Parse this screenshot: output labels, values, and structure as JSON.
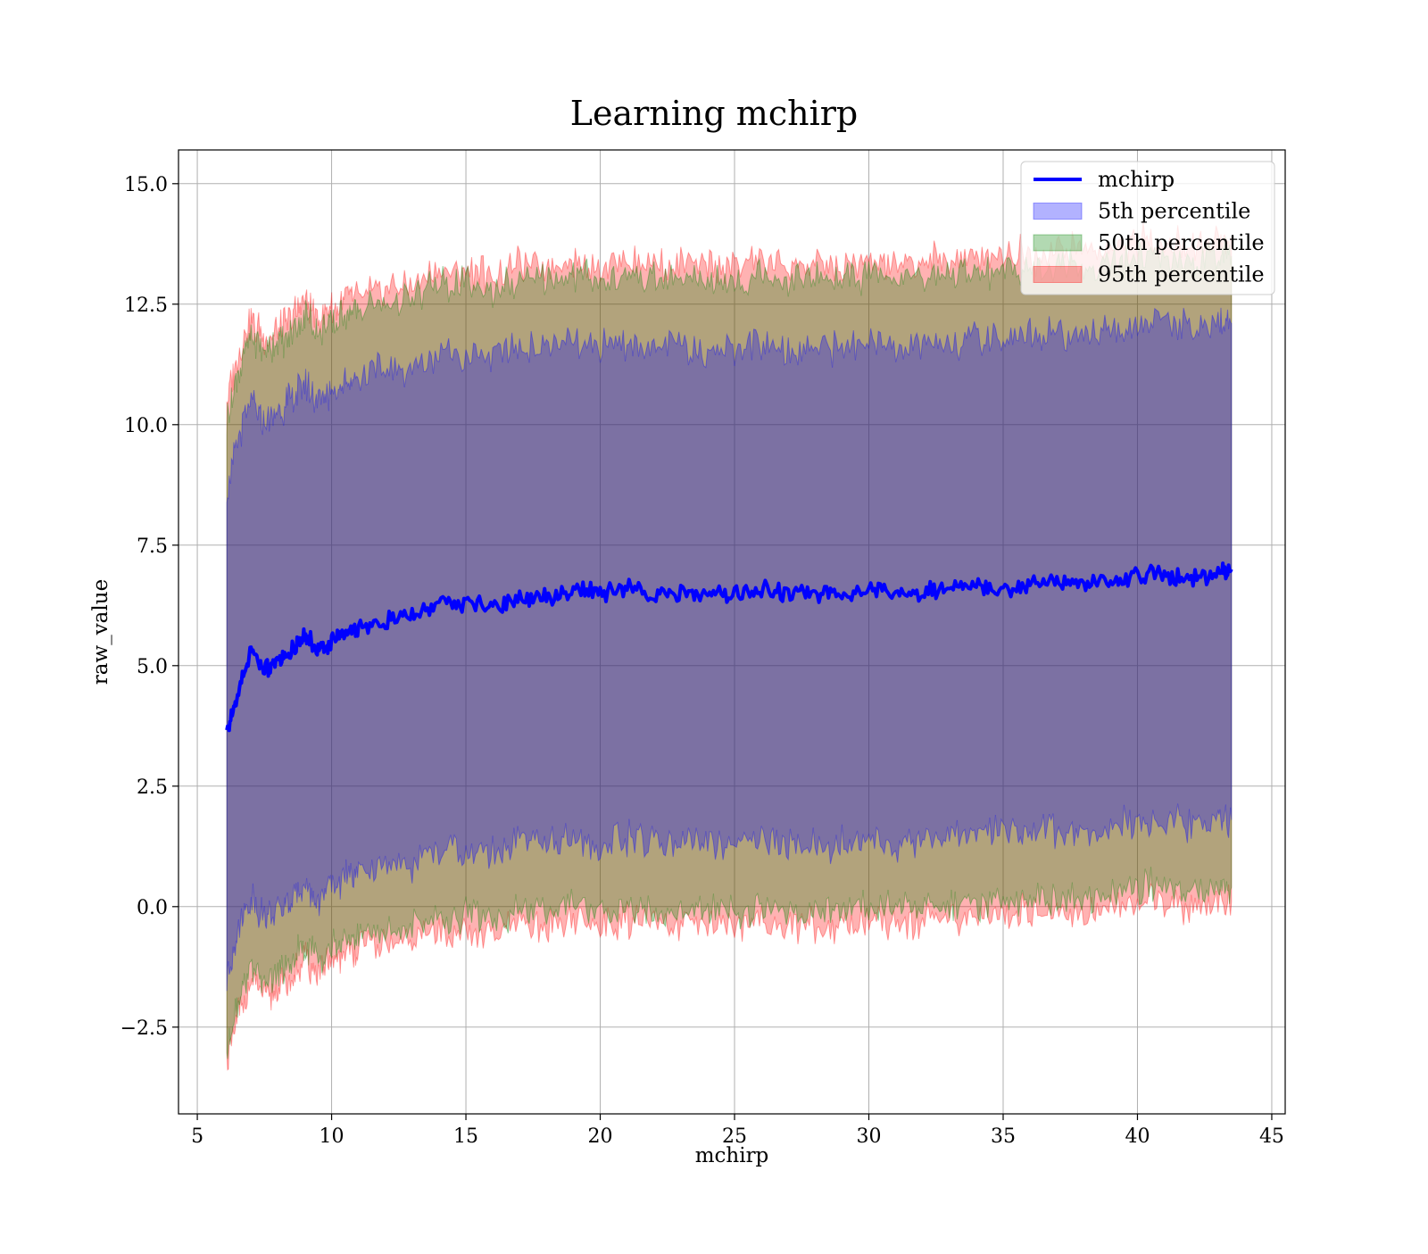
{
  "chart_data": {
    "type": "area",
    "title": "Learning mchirp",
    "xlabel": "mchirp",
    "ylabel": "raw_value",
    "xlim": [
      4.3,
      45.5
    ],
    "ylim": [
      -4.3,
      15.7
    ],
    "xticks": [
      5,
      10,
      15,
      20,
      25,
      30,
      35,
      40,
      45
    ],
    "xtick_labels": [
      "5",
      "10",
      "15",
      "20",
      "25",
      "30",
      "35",
      "40",
      "45"
    ],
    "yticks": [
      -2.5,
      0.0,
      2.5,
      5.0,
      7.5,
      10.0,
      12.5,
      15.0
    ],
    "ytick_labels": [
      "−2.5",
      "0.0",
      "2.5",
      "5.0",
      "7.5",
      "10.0",
      "12.5",
      "15.0"
    ],
    "grid": true,
    "legend_position": "top-right",
    "x": [
      6.1,
      6.5,
      7.0,
      7.5,
      8.0,
      8.5,
      9.0,
      9.5,
      10.0,
      10.5,
      11.0,
      12.0,
      13.0,
      14.0,
      15.0,
      16.0,
      17.0,
      18.0,
      19.0,
      20.0,
      21.0,
      22.0,
      23.0,
      24.0,
      25.0,
      26.0,
      27.0,
      28.0,
      29.0,
      30.0,
      31.0,
      32.0,
      33.0,
      34.0,
      35.0,
      36.0,
      37.0,
      38.0,
      39.0,
      40.0,
      41.0,
      42.0,
      43.0,
      43.5
    ],
    "series": [
      {
        "name": "mchirp",
        "kind": "line",
        "color": "#0000ff",
        "values": [
          3.6,
          4.4,
          5.3,
          4.9,
          5.1,
          5.3,
          5.7,
          5.3,
          5.5,
          5.7,
          5.8,
          5.9,
          6.0,
          6.3,
          6.3,
          6.2,
          6.4,
          6.4,
          6.6,
          6.5,
          6.6,
          6.5,
          6.5,
          6.5,
          6.5,
          6.6,
          6.5,
          6.5,
          6.5,
          6.6,
          6.5,
          6.5,
          6.6,
          6.7,
          6.6,
          6.7,
          6.7,
          6.7,
          6.7,
          6.9,
          6.9,
          6.8,
          6.9,
          7.0
        ]
      },
      {
        "name": "5th percentile",
        "kind": "band",
        "color": "#0000ff",
        "lower": [
          -1.5,
          -0.5,
          0.2,
          -0.2,
          -0.1,
          0.1,
          0.5,
          0.1,
          0.4,
          0.6,
          0.7,
          0.8,
          0.9,
          1.2,
          1.2,
          1.1,
          1.3,
          1.3,
          1.4,
          1.3,
          1.4,
          1.3,
          1.3,
          1.3,
          1.3,
          1.4,
          1.3,
          1.3,
          1.3,
          1.4,
          1.3,
          1.4,
          1.4,
          1.5,
          1.5,
          1.6,
          1.6,
          1.6,
          1.6,
          1.8,
          1.8,
          1.7,
          1.8,
          1.8
        ],
        "upper": [
          8.7,
          9.6,
          10.5,
          10.0,
          10.3,
          10.5,
          10.9,
          10.5,
          10.7,
          10.9,
          11.0,
          11.1,
          11.2,
          11.5,
          11.5,
          11.4,
          11.6,
          11.6,
          11.7,
          11.6,
          11.7,
          11.6,
          11.6,
          11.6,
          11.6,
          11.7,
          11.6,
          11.6,
          11.6,
          11.7,
          11.6,
          11.7,
          11.7,
          11.8,
          11.8,
          11.9,
          11.9,
          11.9,
          11.9,
          12.1,
          12.1,
          12.0,
          12.1,
          12.1
        ]
      },
      {
        "name": "50th percentile",
        "kind": "band",
        "color": "#008000",
        "lower": [
          -3.0,
          -2.0,
          -1.2,
          -1.6,
          -1.4,
          -1.2,
          -0.8,
          -1.1,
          -0.9,
          -0.7,
          -0.6,
          -0.5,
          -0.4,
          -0.2,
          -0.2,
          -0.3,
          -0.1,
          -0.1,
          0.0,
          -0.1,
          0.0,
          -0.1,
          -0.1,
          -0.1,
          -0.1,
          0.0,
          -0.1,
          -0.1,
          -0.1,
          0.0,
          0.0,
          0.0,
          0.0,
          0.1,
          0.1,
          0.2,
          0.2,
          0.2,
          0.2,
          0.4,
          0.4,
          0.3,
          0.4,
          0.4
        ],
        "upper": [
          10.1,
          11.0,
          11.9,
          11.5,
          11.7,
          11.9,
          12.3,
          11.9,
          12.1,
          12.3,
          12.4,
          12.5,
          12.6,
          12.9,
          12.9,
          12.8,
          13.0,
          13.0,
          13.1,
          13.0,
          13.1,
          13.0,
          13.0,
          13.0,
          13.0,
          13.1,
          13.0,
          13.0,
          13.0,
          13.1,
          13.0,
          13.1,
          13.1,
          13.2,
          13.2,
          13.3,
          13.3,
          13.3,
          13.3,
          13.5,
          13.5,
          13.4,
          13.5,
          13.5
        ]
      },
      {
        "name": "95th percentile",
        "kind": "band",
        "color": "#ff0000",
        "lower": [
          -3.2,
          -2.3,
          -1.5,
          -1.9,
          -1.7,
          -1.5,
          -1.1,
          -1.4,
          -1.2,
          -1.0,
          -0.9,
          -0.8,
          -0.7,
          -0.5,
          -0.5,
          -0.6,
          -0.4,
          -0.4,
          -0.3,
          -0.4,
          -0.3,
          -0.4,
          -0.4,
          -0.4,
          -0.4,
          -0.3,
          -0.4,
          -0.4,
          -0.4,
          -0.3,
          -0.3,
          -0.3,
          -0.3,
          -0.2,
          -0.2,
          -0.1,
          -0.1,
          -0.1,
          -0.1,
          0.1,
          0.1,
          0.0,
          0.1,
          0.1
        ],
        "upper": [
          10.5,
          11.4,
          12.2,
          11.8,
          12.0,
          12.2,
          12.6,
          12.2,
          12.4,
          12.6,
          12.7,
          12.8,
          12.9,
          13.2,
          13.2,
          13.1,
          13.3,
          13.3,
          13.4,
          13.3,
          13.4,
          13.3,
          13.3,
          13.3,
          13.3,
          13.4,
          13.3,
          13.3,
          13.3,
          13.4,
          13.3,
          13.4,
          13.4,
          13.5,
          13.5,
          13.6,
          13.6,
          13.6,
          13.6,
          13.8,
          13.8,
          13.7,
          13.8,
          13.8
        ]
      }
    ]
  }
}
